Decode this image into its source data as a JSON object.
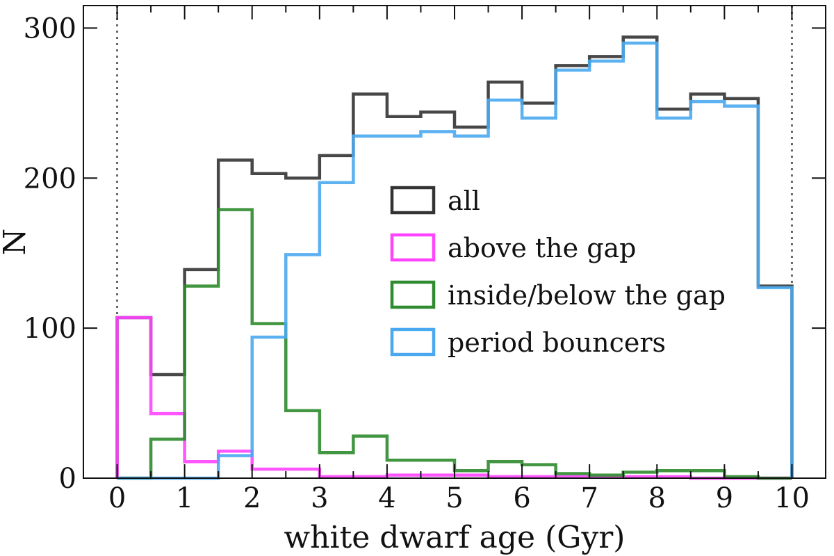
{
  "chart_data": {
    "type": "histogram",
    "title": "",
    "xlabel": "white dwarf age (Gyr)",
    "ylabel": "N",
    "xlim": [
      -0.5,
      10.5
    ],
    "ylim": [
      0,
      315
    ],
    "xticks": [
      "0",
      "1",
      "2",
      "3",
      "4",
      "5",
      "6",
      "7",
      "8",
      "9",
      "10"
    ],
    "yticks": [
      "0",
      "100",
      "200",
      "300"
    ],
    "grid": false,
    "legend_position": "center-right",
    "reference_lines_x": [
      0,
      10
    ],
    "bin_edges": [
      0,
      0.5,
      1,
      1.5,
      2,
      2.5,
      3,
      3.5,
      4,
      4.5,
      5,
      5.5,
      6,
      6.5,
      7,
      7.5,
      8,
      8.5,
      9,
      9.5,
      10
    ],
    "series": [
      {
        "name": "all",
        "color": "#333333",
        "values": [
          107,
          69,
          139,
          212,
          203,
          200,
          215,
          256,
          241,
          244,
          234,
          264,
          250,
          275,
          281,
          294,
          246,
          256,
          253,
          128
        ]
      },
      {
        "name": "above the gap",
        "color": "#ff44ff",
        "values": [
          107,
          43,
          11,
          18,
          6,
          6,
          1,
          1,
          2,
          2,
          2,
          1,
          1,
          1,
          1,
          1,
          1,
          0,
          0,
          0
        ]
      },
      {
        "name": "inside/below the gap",
        "color": "#2e8b2e",
        "values": [
          0,
          26,
          128,
          179,
          103,
          45,
          17,
          28,
          12,
          12,
          5,
          11,
          9,
          3,
          2,
          4,
          5,
          5,
          1,
          0
        ]
      },
      {
        "name": "period bouncers",
        "color": "#4aa8f0",
        "values": [
          0,
          0,
          0,
          15,
          94,
          149,
          197,
          228,
          228,
          231,
          228,
          252,
          240,
          272,
          278,
          290,
          240,
          251,
          248,
          127
        ]
      }
    ]
  }
}
